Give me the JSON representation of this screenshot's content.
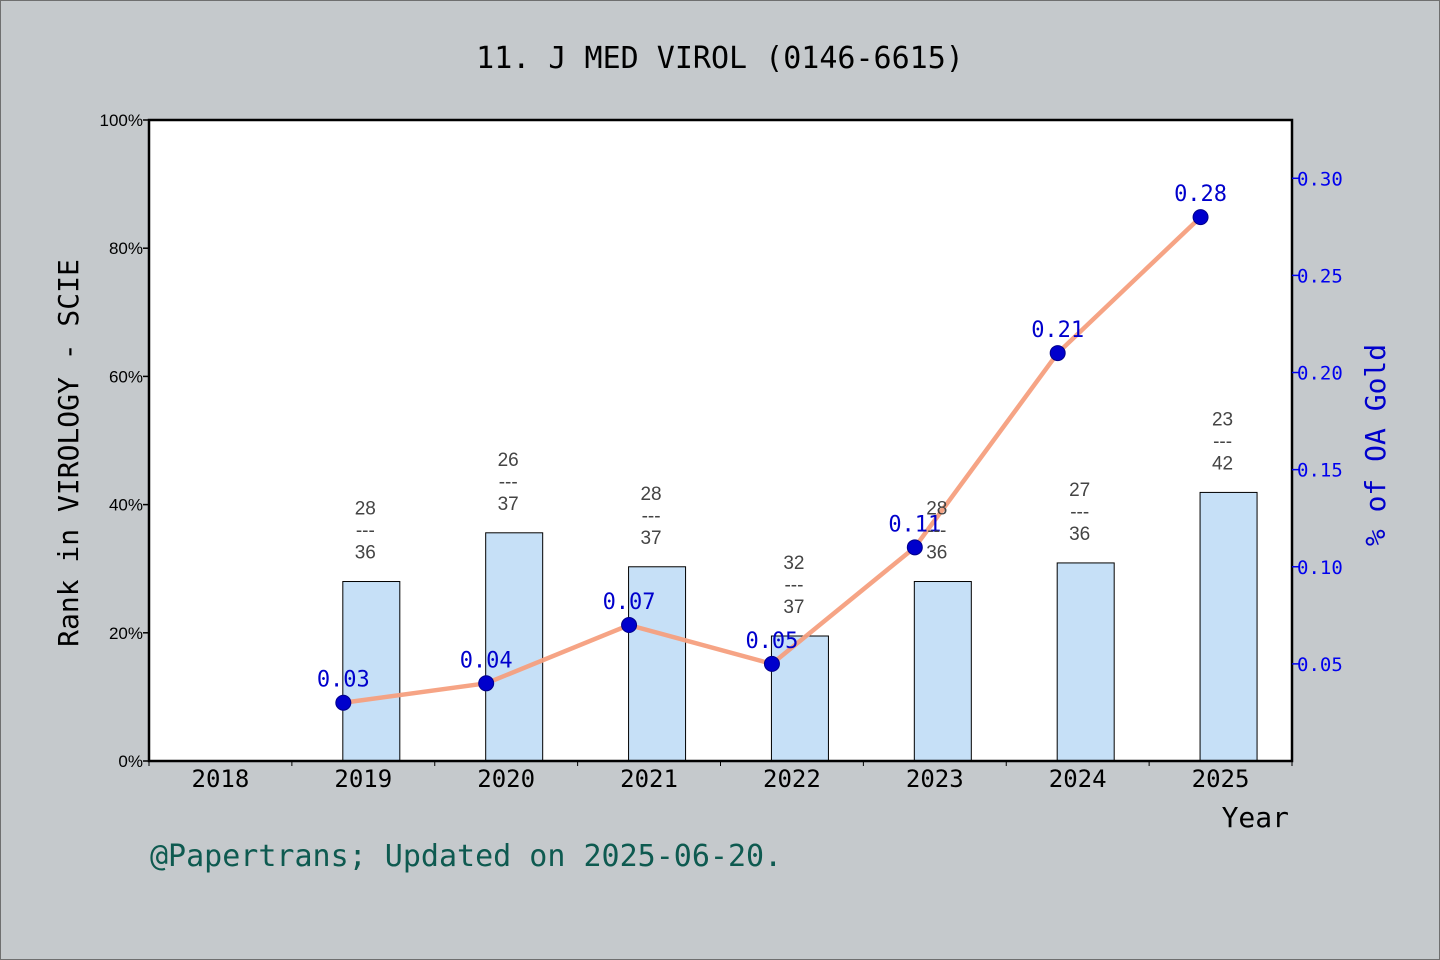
{
  "chart_data": {
    "type": "bar",
    "title": "11. J MED VIROL (0146-6615)",
    "xlabel": "Year",
    "ylabel": "Rank in VIROLOGY - SCIE",
    "y2label": "% of OA Gold",
    "categories": [
      "2018",
      "2019",
      "2020",
      "2021",
      "2022",
      "2023",
      "2024",
      "2025"
    ],
    "ylim": [
      0,
      100
    ],
    "yticks": [
      "0%",
      "20%",
      "40%",
      "60%",
      "80%",
      "100%"
    ],
    "y2lim": [
      0,
      0.33
    ],
    "y2ticks": [
      "0.05",
      "0.10",
      "0.15",
      "0.20",
      "0.25",
      "0.30"
    ],
    "y2tick_values": [
      0.05,
      0.1,
      0.15,
      0.2,
      0.25,
      0.3
    ],
    "series": [
      {
        "values": [
          null,
          28,
          35.6,
          30.3,
          19.5,
          28,
          30.9,
          41.9
        ],
        "rank": [
          null,
          "28",
          "26",
          "28",
          "32",
          "28",
          "27",
          "23"
        ],
        "total": [
          null,
          "36",
          "37",
          "37",
          "37",
          "36",
          "36",
          "42"
        ],
        "dash": "---",
        "color": "#c6e0f7"
      },
      {
        "values": [
          null,
          0.03,
          0.04,
          0.07,
          0.05,
          0.11,
          0.21,
          0.28
        ],
        "labels": [
          null,
          "0.03",
          "0.04",
          "0.07",
          "0.05",
          "0.11",
          "0.21",
          "0.28"
        ],
        "axis": "right",
        "color": "#f6a07f"
      }
    ],
    "grid": false
  },
  "footer": "@Papertrans; Updated on 2025-06-20."
}
